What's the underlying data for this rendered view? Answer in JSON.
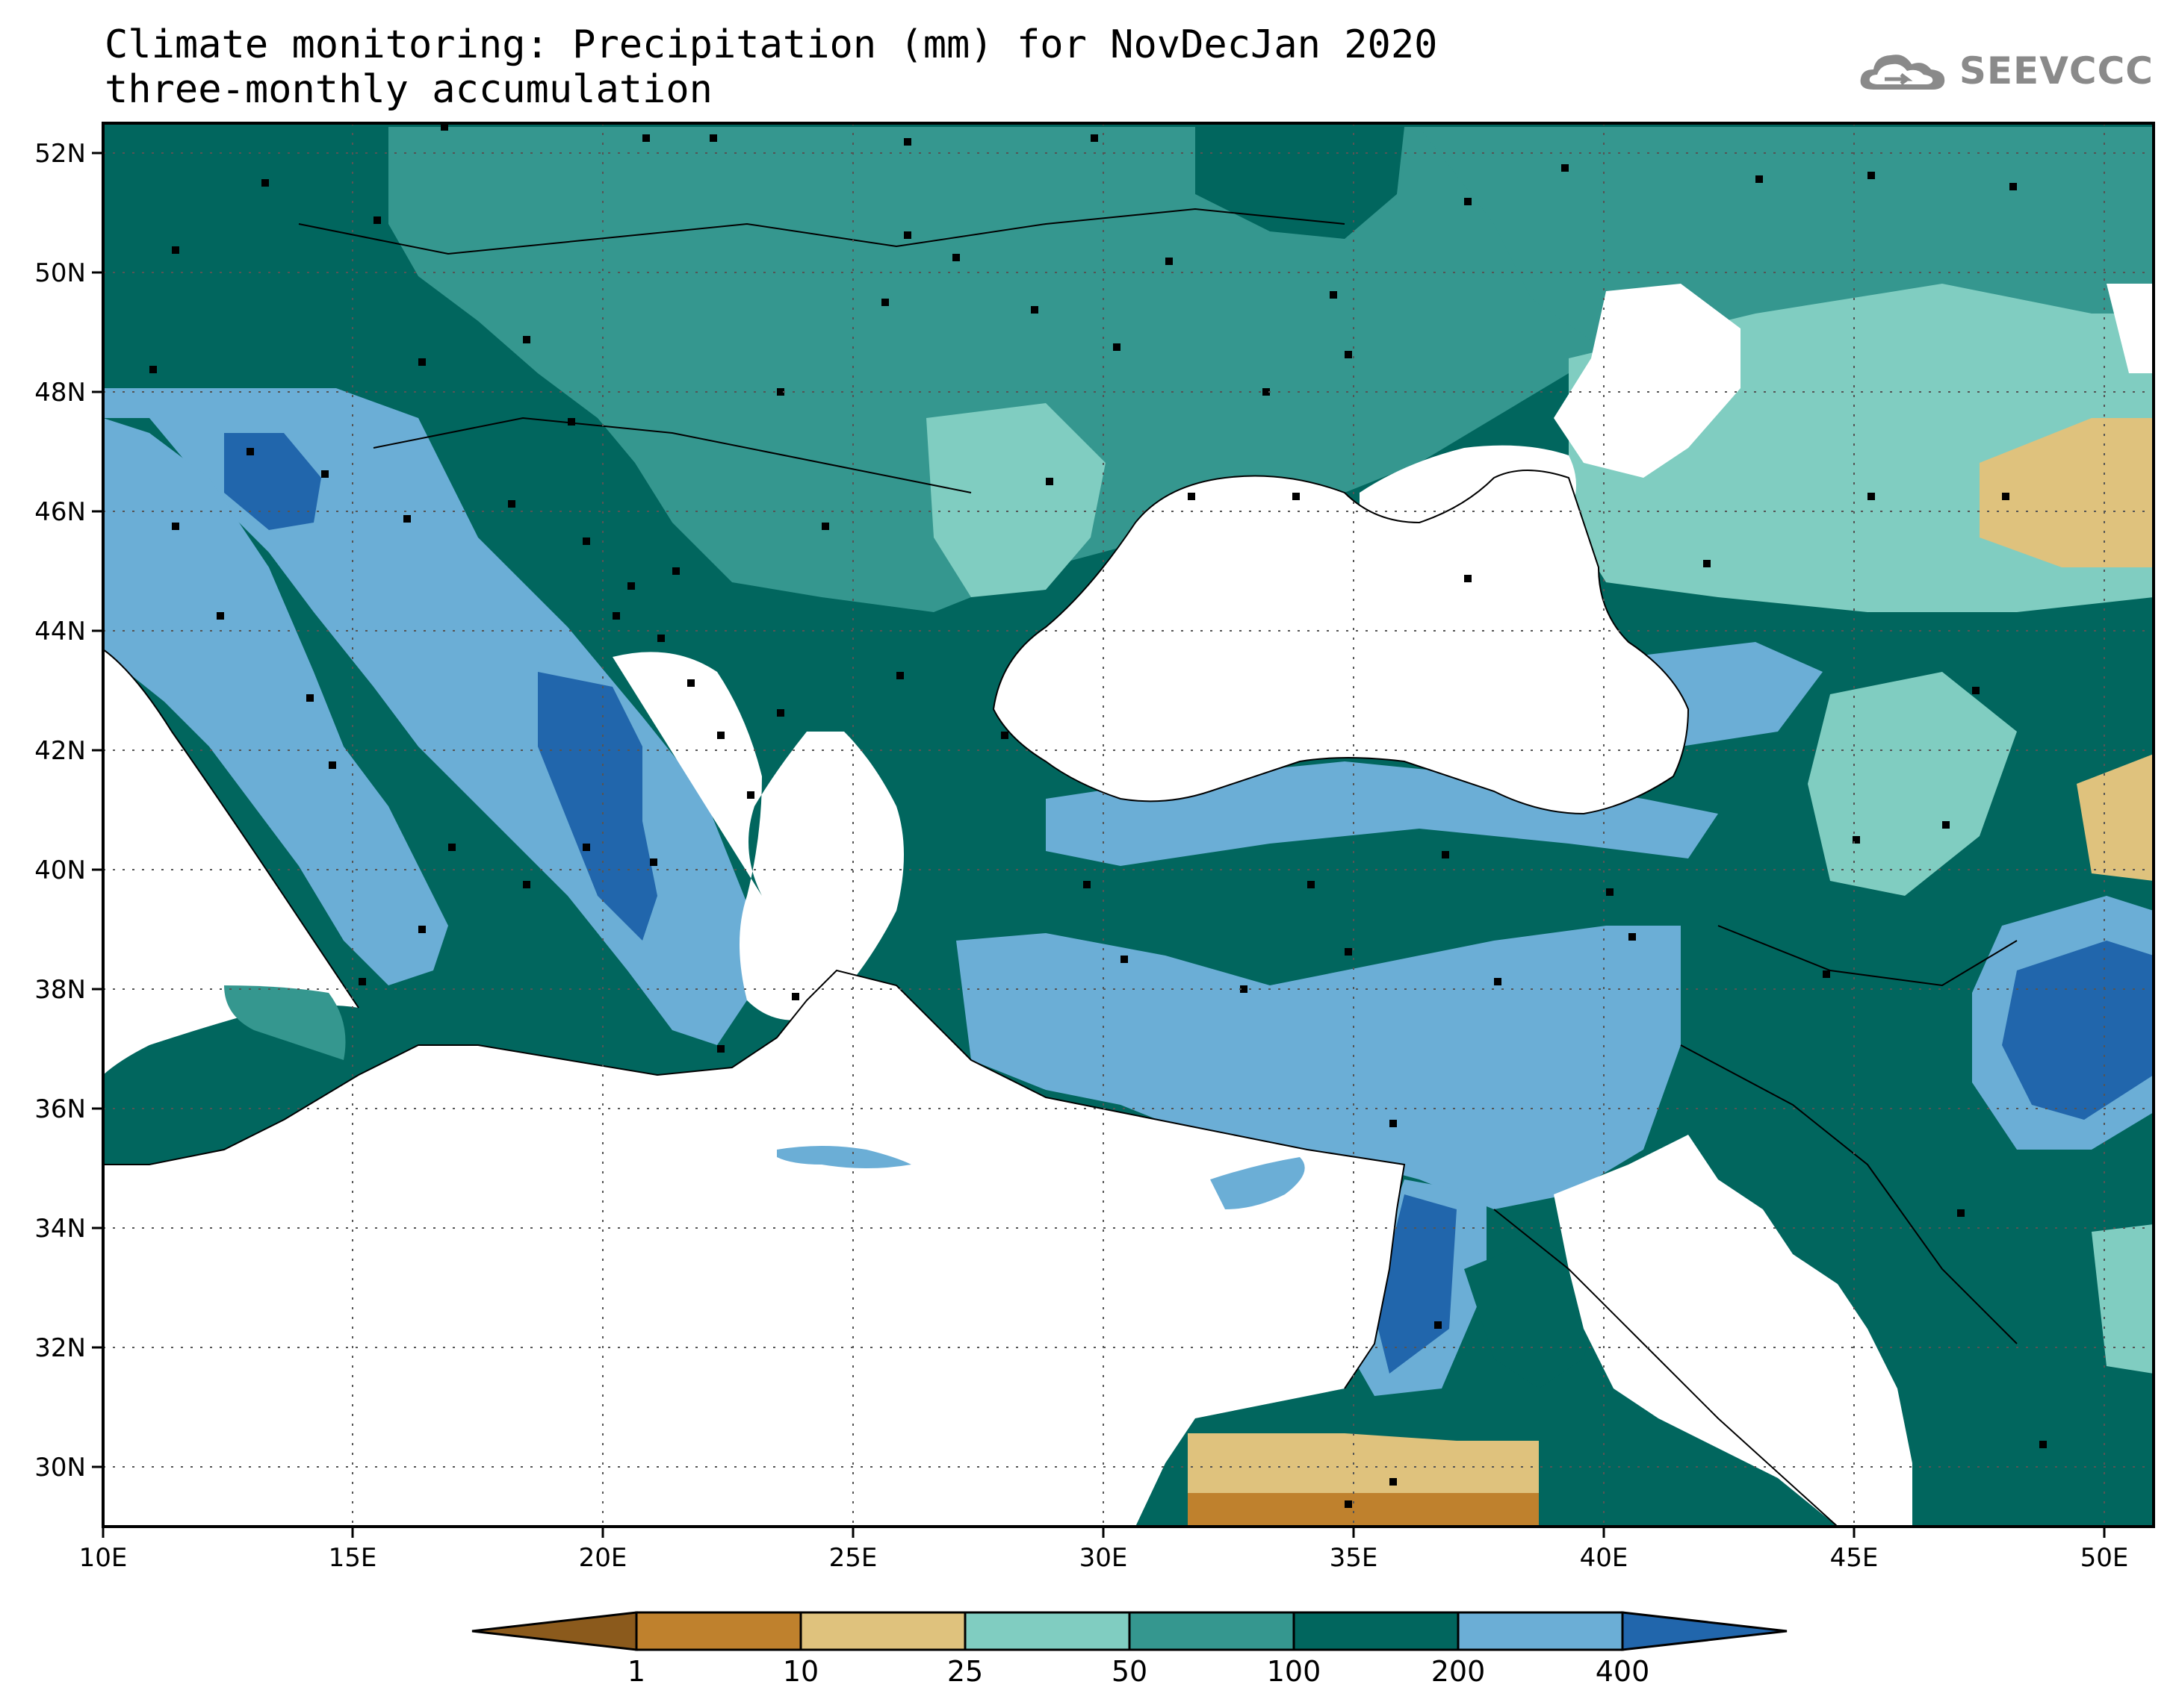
{
  "title": {
    "line1": "Climate monitoring: Precipitation (mm) for NovDecJan 2020",
    "line2": "three-monthly accumulation"
  },
  "logo": {
    "text": "SEEVCCC",
    "icon": "cloud-icon",
    "color": "#8a8a8a"
  },
  "map": {
    "lon_range": [
      10,
      51
    ],
    "lat_range": [
      29,
      52.5
    ],
    "lon_ticks": [
      "10E",
      "15E",
      "20E",
      "25E",
      "30E",
      "35E",
      "40E",
      "45E",
      "50E"
    ],
    "lat_ticks": [
      "30N",
      "32N",
      "34N",
      "36N",
      "38N",
      "40N",
      "42N",
      "44N",
      "46N",
      "48N",
      "50N",
      "52N"
    ],
    "grid": "dotted"
  },
  "colorbar": {
    "labels": [
      "1",
      "10",
      "25",
      "50",
      "100",
      "200",
      "400"
    ],
    "colors": [
      "#8b5a1c",
      "#bf812d",
      "#dfc27d",
      "#80cdc1",
      "#35978f",
      "#01665e",
      "#6baed6",
      "#2166ac"
    ],
    "extend": "both"
  }
}
